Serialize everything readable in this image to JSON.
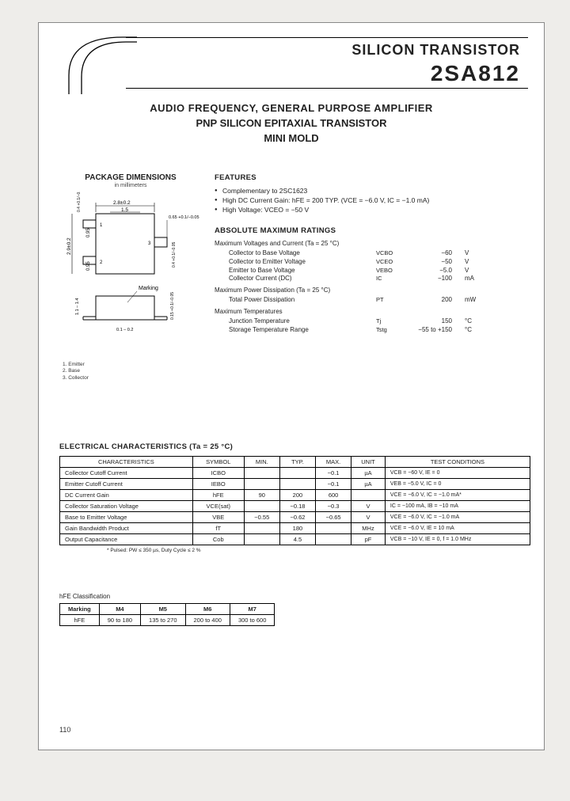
{
  "header": {
    "line1": "SILICON TRANSISTOR",
    "line2": "2SA812"
  },
  "subtitle": {
    "s1": "AUDIO FREQUENCY, GENERAL PURPOSE AMPLIFIER",
    "s2": "PNP SILICON EPITAXIAL TRANSISTOR",
    "s3": "MINI MOLD"
  },
  "package": {
    "title": "PACKAGE DIMENSIONS",
    "sub": "in millimeters",
    "dims": {
      "w_top": "2.8±0.2",
      "w_inner": "1.5",
      "tab_h": "0.65 +0.1/−0.05",
      "left_h1": "0.95",
      "left_h2": "0.95",
      "left_total": "2.9±0.2",
      "marking": "Marking",
      "left_tab": "0.4 +0.1/−0.05",
      "right_side": "0.4 +0.1/−0.05",
      "side_h": "1.1 – 1.4",
      "foot_w": "0.1 – 0.2",
      "thick": "0.15 +0.1/−0.05"
    },
    "pins": [
      "1. Emitter",
      "2. Base",
      "3. Collector"
    ]
  },
  "features": {
    "heading": "FEATURES",
    "items": [
      "Complementary to 2SC1623",
      "High DC Current Gain: hFE = 200 TYP. (VCE = −6.0 V, IC = −1.0 mA)",
      "High Voltage: VCEO = −50 V"
    ]
  },
  "ratings": {
    "heading": "ABSOLUTE MAXIMUM RATINGS",
    "group1_title": "Maximum Voltages and Current (Ta = 25 °C)",
    "group1": [
      {
        "lbl": "Collector to Base Voltage",
        "sym": "VCBO",
        "val": "−60",
        "unit": "V"
      },
      {
        "lbl": "Collector to Emitter Voltage",
        "sym": "VCEO",
        "val": "−50",
        "unit": "V"
      },
      {
        "lbl": "Emitter to Base Voltage",
        "sym": "VEBO",
        "val": "−5.0",
        "unit": "V"
      },
      {
        "lbl": "Collector Current (DC)",
        "sym": "IC",
        "val": "−100",
        "unit": "mA"
      }
    ],
    "group2_title": "Maximum Power Dissipation (Ta = 25 °C)",
    "group2": [
      {
        "lbl": "Total Power Dissipation",
        "sym": "PT",
        "val": "200",
        "unit": "mW"
      }
    ],
    "group3_title": "Maximum Temperatures",
    "group3": [
      {
        "lbl": "Junction Temperature",
        "sym": "Tj",
        "val": "150",
        "unit": "°C"
      },
      {
        "lbl": "Storage Temperature Range",
        "sym": "Tstg",
        "val": "−55 to +150",
        "unit": "°C"
      }
    ]
  },
  "electrical": {
    "heading": "ELECTRICAL CHARACTERISTICS (Ta = 25 °C)",
    "columns": [
      "CHARACTERISTICS",
      "SYMBOL",
      "MIN.",
      "TYP.",
      "MAX.",
      "UNIT",
      "TEST CONDITIONS"
    ],
    "rows": [
      [
        "Collector Cutoff Current",
        "ICBO",
        "",
        "",
        "−0.1",
        "µA",
        "VCB = −60 V, IE = 0"
      ],
      [
        "Emitter Cutoff Current",
        "IEBO",
        "",
        "",
        "−0.1",
        "µA",
        "VEB = −5.0 V, IC = 0"
      ],
      [
        "DC Current Gain",
        "hFE",
        "90",
        "200",
        "600",
        "",
        "VCE = −6.0 V, IC = −1.0 mA*"
      ],
      [
        "Collector Saturation Voltage",
        "VCE(sat)",
        "",
        "−0.18",
        "−0.3",
        "V",
        "IC = −100 mA, IB = −10 mA"
      ],
      [
        "Base to Emitter Voltage",
        "VBE",
        "−0.55",
        "−0.62",
        "−0.65",
        "V",
        "VCE = −6.0 V, IC = −1.0 mA"
      ],
      [
        "Gain Bandwidth Product",
        "fT",
        "",
        "180",
        "",
        "MHz",
        "VCE = −6.0 V, IE = 10 mA"
      ],
      [
        "Output Capacitance",
        "Cob",
        "",
        "4.5",
        "",
        "pF",
        "VCB = −10 V, IE = 0, f = 1.0 MHz"
      ]
    ],
    "footnote": "* Pulsed: PW ≤ 350 µs, Duty Cycle ≤ 2 %"
  },
  "hfe": {
    "heading": "hFE Classification",
    "columns": [
      "Marking",
      "M4",
      "M5",
      "M6",
      "M7"
    ],
    "row_label": "hFE",
    "row": [
      "90 to 180",
      "135 to 270",
      "200 to 400",
      "300 to 600"
    ]
  },
  "page_number": "110",
  "colors": {
    "text": "#222222",
    "border": "#000000",
    "page_bg": "#ffffff",
    "scanner_bg": "#eeedea"
  }
}
